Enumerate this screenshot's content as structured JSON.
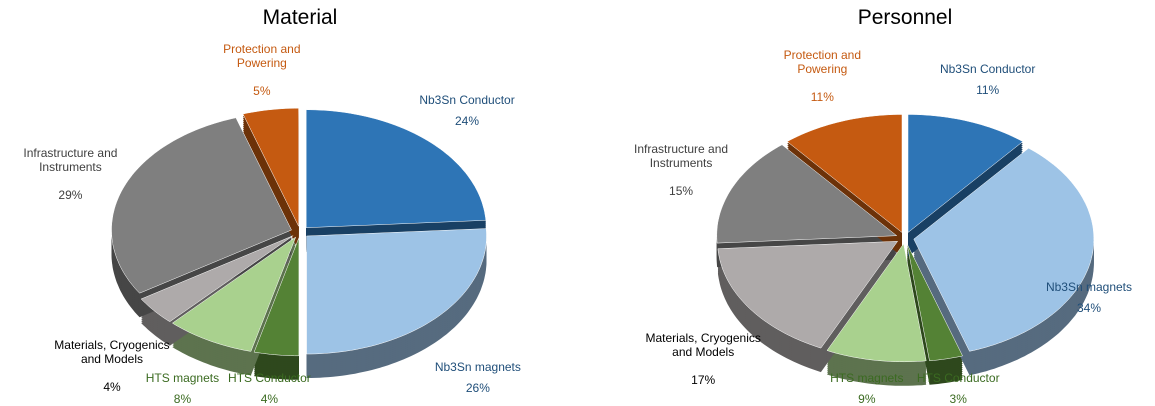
{
  "chart_data": [
    {
      "type": "pie",
      "title": "Material",
      "categories": [
        "Nb3Sn Conductor",
        "Nb3Sn magnets",
        "HTS Conductor",
        "HTS magnets",
        "Materials, Cryogenics and Models",
        "Infrastructure and Instruments",
        "Protection and Powering"
      ],
      "values": [
        24,
        26,
        4,
        8,
        4,
        29,
        5
      ],
      "value_labels": [
        "24%",
        "26%",
        "4%",
        "8%",
        "4%",
        "29%",
        "5%"
      ],
      "colors": [
        "#2e75b6",
        "#9dc3e6",
        "#548235",
        "#a9d18e",
        "#aeaaaa",
        "#7f7f7f",
        "#c55a11"
      ],
      "label_colors": [
        "#1f4e79",
        "#1f4e79",
        "#3b6b21",
        "#3b6b21",
        "#000000",
        "#404040",
        "#c55a11"
      ]
    },
    {
      "type": "pie",
      "title": "Personnel",
      "categories": [
        "Nb3Sn Conductor",
        "Nb3Sn magnets",
        "HTS Conductor",
        "HTS magnets",
        "Materials, Cryogenics and Models",
        "Infrastructure and Instruments",
        "Protection and Powering"
      ],
      "values": [
        11,
        34,
        3,
        9,
        17,
        15,
        11
      ],
      "value_labels": [
        "11%",
        "34%",
        "3%",
        "9%",
        "17%",
        "15%",
        "11%"
      ],
      "colors": [
        "#2e75b6",
        "#9dc3e6",
        "#548235",
        "#a9d18e",
        "#aeaaaa",
        "#7f7f7f",
        "#c55a11"
      ],
      "label_colors": [
        "#1f4e79",
        "#1f4e79",
        "#3b6b21",
        "#3b6b21",
        "#000000",
        "#404040",
        "#c55a11"
      ]
    }
  ]
}
